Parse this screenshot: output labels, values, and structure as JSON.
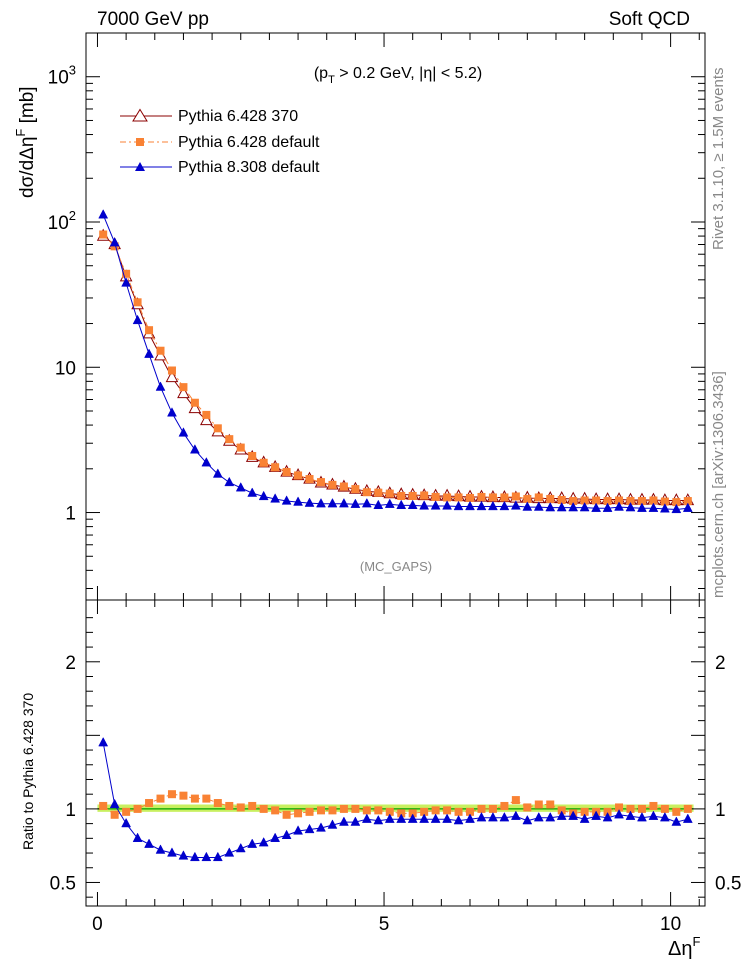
{
  "header": {
    "left": "7000 GeV pp",
    "right": "Soft QCD"
  },
  "side_text": {
    "rivet": "Rivet 3.1.10, ≥ 1.5M events",
    "mcplots": "mcplots.cern.ch [arXiv:1306.3436]"
  },
  "colors": {
    "p6_370": "#8b0000",
    "p6_default": "#f98234",
    "p8_default": "#0000cc",
    "band": "#c8f060",
    "refline": "#00a000"
  },
  "chart_data": [
    {
      "type": "line",
      "title": "(p_T > 0.2 GeV, |η| < 5.2)",
      "title_parts": [
        "(p",
        "T",
        " > 0.2 GeV, |η| < 5.2)"
      ],
      "ylabel": "dσ/dΔη^F [mb]",
      "ylabel_parts": [
        "dσ/dΔη",
        "F",
        " [mb]"
      ],
      "annotation": "(MC_GAPS)",
      "yscale": "log",
      "xlim": [
        -0.2,
        10.6
      ],
      "ylim": [
        0.25,
        2000
      ],
      "yticks": [
        {
          "value": 1000,
          "label": "10",
          "exp": "3"
        },
        {
          "value": 100,
          "label": "10",
          "exp": "2"
        },
        {
          "value": 10,
          "label": "10",
          "exp": ""
        },
        {
          "value": 1,
          "label": "1",
          "exp": ""
        }
      ],
      "legend_position": "top-left",
      "x": [
        0.1,
        0.3,
        0.5,
        0.7,
        0.9,
        1.1,
        1.3,
        1.5,
        1.7,
        1.9,
        2.1,
        2.3,
        2.5,
        2.7,
        2.9,
        3.1,
        3.3,
        3.5,
        3.7,
        3.9,
        4.1,
        4.3,
        4.5,
        4.7,
        4.9,
        5.1,
        5.3,
        5.5,
        5.7,
        5.9,
        6.1,
        6.3,
        6.5,
        6.7,
        6.9,
        7.1,
        7.3,
        7.5,
        7.7,
        7.9,
        8.1,
        8.3,
        8.5,
        8.7,
        8.9,
        9.1,
        9.3,
        9.5,
        9.7,
        9.9,
        10.1,
        10.3
      ],
      "series": [
        {
          "name": "Pythia 6.428 370",
          "marker": "open-triangle",
          "values": [
            80,
            70,
            42,
            27,
            17,
            12,
            8.5,
            6.6,
            5.2,
            4.3,
            3.6,
            3.1,
            2.7,
            2.4,
            2.2,
            2.05,
            1.9,
            1.8,
            1.7,
            1.6,
            1.55,
            1.5,
            1.45,
            1.4,
            1.38,
            1.35,
            1.33,
            1.32,
            1.31,
            1.3,
            1.3,
            1.29,
            1.28,
            1.28,
            1.27,
            1.27,
            1.26,
            1.26,
            1.25,
            1.25,
            1.25,
            1.24,
            1.24,
            1.23,
            1.23,
            1.23,
            1.22,
            1.22,
            1.22,
            1.21,
            1.21,
            1.21
          ]
        },
        {
          "name": "Pythia 6.428 default",
          "marker": "square",
          "values": [
            82,
            68,
            44,
            28,
            18,
            13,
            9.5,
            7.3,
            5.7,
            4.7,
            3.8,
            3.2,
            2.8,
            2.45,
            2.2,
            2.05,
            1.9,
            1.8,
            1.7,
            1.62,
            1.55,
            1.51,
            1.45,
            1.38,
            1.37,
            1.35,
            1.3,
            1.3,
            1.31,
            1.28,
            1.27,
            1.27,
            1.26,
            1.28,
            1.27,
            1.27,
            1.29,
            1.24,
            1.27,
            1.24,
            1.22,
            1.2,
            1.21,
            1.21,
            1.2,
            1.21,
            1.2,
            1.2,
            1.21,
            1.19,
            1.18,
            1.2
          ]
        },
        {
          "name": "Pythia 8.308 default",
          "marker": "triangle",
          "values": [
            112,
            72,
            38,
            21,
            12.3,
            7.3,
            4.85,
            3.53,
            2.7,
            2.2,
            1.84,
            1.61,
            1.48,
            1.36,
            1.29,
            1.24,
            1.2,
            1.18,
            1.16,
            1.15,
            1.15,
            1.15,
            1.14,
            1.15,
            1.12,
            1.14,
            1.12,
            1.12,
            1.11,
            1.11,
            1.11,
            1.1,
            1.1,
            1.1,
            1.1,
            1.1,
            1.11,
            1.09,
            1.09,
            1.08,
            1.08,
            1.08,
            1.08,
            1.07,
            1.07,
            1.09,
            1.08,
            1.07,
            1.07,
            1.06,
            1.05,
            1.07
          ]
        }
      ]
    },
    {
      "type": "line",
      "ylabel": "Ratio to Pythia 6.428 370",
      "xlabel": "Δη^F",
      "xlabel_parts": [
        "Δη",
        "F"
      ],
      "xlim": [
        -0.2,
        10.6
      ],
      "ylim": [
        0.34,
        2.42
      ],
      "xticks": [
        {
          "value": 0,
          "label": "0"
        },
        {
          "value": 5,
          "label": "5"
        },
        {
          "value": 10,
          "label": "10"
        }
      ],
      "yticks": [
        {
          "value": 0.5,
          "label": "0.5"
        },
        {
          "value": 1,
          "label": "1"
        },
        {
          "value": 2,
          "label": "2"
        }
      ],
      "band": [
        0.98,
        1.03
      ],
      "reference": 1,
      "x": [
        0.1,
        0.3,
        0.5,
        0.7,
        0.9,
        1.1,
        1.3,
        1.5,
        1.7,
        1.9,
        2.1,
        2.3,
        2.5,
        2.7,
        2.9,
        3.1,
        3.3,
        3.5,
        3.7,
        3.9,
        4.1,
        4.3,
        4.5,
        4.7,
        4.9,
        5.1,
        5.3,
        5.5,
        5.7,
        5.9,
        6.1,
        6.3,
        6.5,
        6.7,
        6.9,
        7.1,
        7.3,
        7.5,
        7.7,
        7.9,
        8.1,
        8.3,
        8.5,
        8.7,
        8.9,
        9.1,
        9.3,
        9.5,
        9.7,
        9.9,
        10.1,
        10.3
      ],
      "series": [
        {
          "name": "Pythia 6.428 default",
          "marker": "square",
          "values": [
            1.02,
            0.96,
            0.98,
            1.0,
            1.04,
            1.07,
            1.1,
            1.09,
            1.07,
            1.07,
            1.04,
            1.02,
            1.01,
            1.02,
            1.0,
            0.99,
            0.96,
            0.97,
            0.98,
            0.99,
            0.99,
            1.0,
            1.0,
            0.99,
            0.99,
            0.98,
            0.97,
            0.97,
            0.98,
            0.99,
            0.99,
            0.98,
            0.98,
            1.0,
            1.0,
            1.02,
            1.06,
            1.01,
            1.03,
            1.03,
            0.99,
            0.97,
            0.98,
            0.98,
            0.98,
            1.01,
            1.0,
            1.0,
            1.02,
            1.0,
            0.98,
            1.0
          ]
        },
        {
          "name": "Pythia 8.308 default",
          "marker": "triangle",
          "values": [
            1.45,
            1.03,
            0.9,
            0.8,
            0.76,
            0.72,
            0.7,
            0.68,
            0.67,
            0.67,
            0.67,
            0.7,
            0.73,
            0.76,
            0.77,
            0.8,
            0.82,
            0.85,
            0.86,
            0.87,
            0.89,
            0.91,
            0.91,
            0.93,
            0.92,
            0.93,
            0.93,
            0.93,
            0.93,
            0.93,
            0.93,
            0.92,
            0.93,
            0.94,
            0.94,
            0.94,
            0.95,
            0.92,
            0.94,
            0.94,
            0.95,
            0.95,
            0.93,
            0.95,
            0.94,
            0.96,
            0.95,
            0.94,
            0.95,
            0.94,
            0.91,
            0.93
          ]
        }
      ]
    }
  ]
}
